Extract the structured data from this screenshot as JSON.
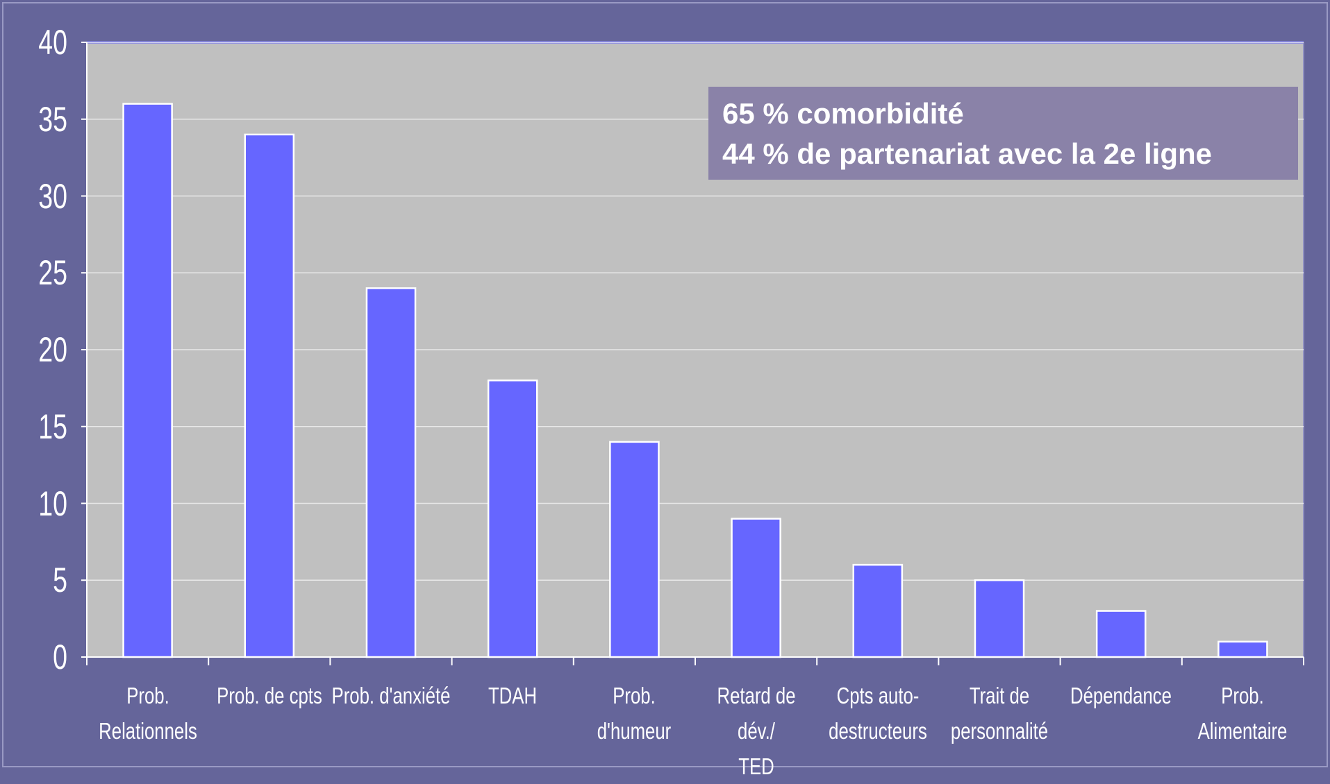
{
  "chart_data": {
    "type": "bar",
    "categories": [
      "Prob.\nRelationnels",
      "Prob. de cpts",
      "Prob. d'anxiété",
      "TDAH",
      "Prob. d'humeur",
      "Retard de dév./\nTED",
      "Cpts auto-\ndestructeurs",
      "Trait de\npersonnalité",
      "Dépendance",
      "Prob.\nAlimentaire"
    ],
    "values": [
      36,
      34,
      24,
      18,
      14,
      9,
      6,
      5,
      3,
      1
    ],
    "color": "#6666ff",
    "ylim": [
      0,
      40
    ],
    "yticks": [
      0,
      5,
      10,
      15,
      20,
      25,
      30,
      35,
      40
    ],
    "grid": true,
    "annotations": [
      "65 % comorbidité",
      "44 % de partenariat avec la 2e ligne"
    ]
  }
}
